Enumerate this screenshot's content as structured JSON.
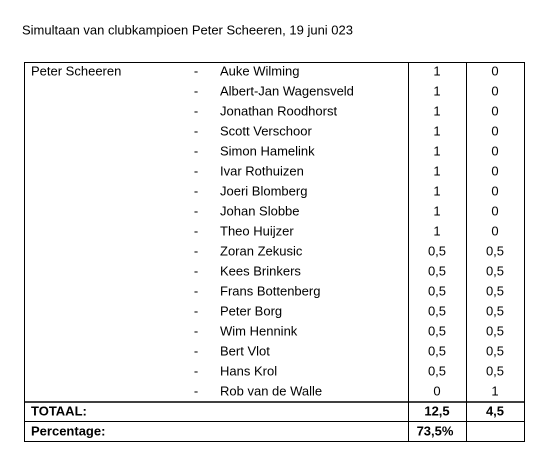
{
  "title": "Simultaan van clubkampioen Peter Scheeren, 19 juni 023",
  "table": {
    "player": "Peter Scheeren",
    "rows": [
      [
        "-",
        "Auke Wilming",
        "1",
        "0"
      ],
      [
        "-",
        "Albert-Jan Wagensveld",
        "1",
        "0"
      ],
      [
        "-",
        "Jonathan Roodhorst",
        "1",
        "0"
      ],
      [
        "-",
        "Scott Verschoor",
        "1",
        "0"
      ],
      [
        "-",
        "Simon Hamelink",
        "1",
        "0"
      ],
      [
        "-",
        "Ivar Rothuizen",
        "1",
        "0"
      ],
      [
        "-",
        "Joeri Blomberg",
        "1",
        "0"
      ],
      [
        "-",
        "Johan Slobbe",
        "1",
        "0"
      ],
      [
        "-",
        "Theo Huijzer",
        "1",
        "0"
      ],
      [
        "-",
        "Zoran Zekusic",
        "0,5",
        "0,5"
      ],
      [
        "-",
        "Kees Brinkers",
        "0,5",
        "0,5"
      ],
      [
        "-",
        "Frans Bottenberg",
        "0,5",
        "0,5"
      ],
      [
        "-",
        "Peter Borg",
        "0,5",
        "0,5"
      ],
      [
        "-",
        "Wim Hennink",
        "0,5",
        "0,5"
      ],
      [
        "-",
        "Bert Vlot",
        "0,5",
        "0,5"
      ],
      [
        "-",
        "Hans Krol",
        "0,5",
        "0,5"
      ],
      [
        "-",
        "Rob van de Walle",
        "0",
        "1"
      ]
    ],
    "total": {
      "label": "TOTAAL:",
      "score": "12,5",
      "opponents": "4,5"
    },
    "percentage": {
      "label": "Percentage:",
      "value": "73,5%"
    }
  }
}
